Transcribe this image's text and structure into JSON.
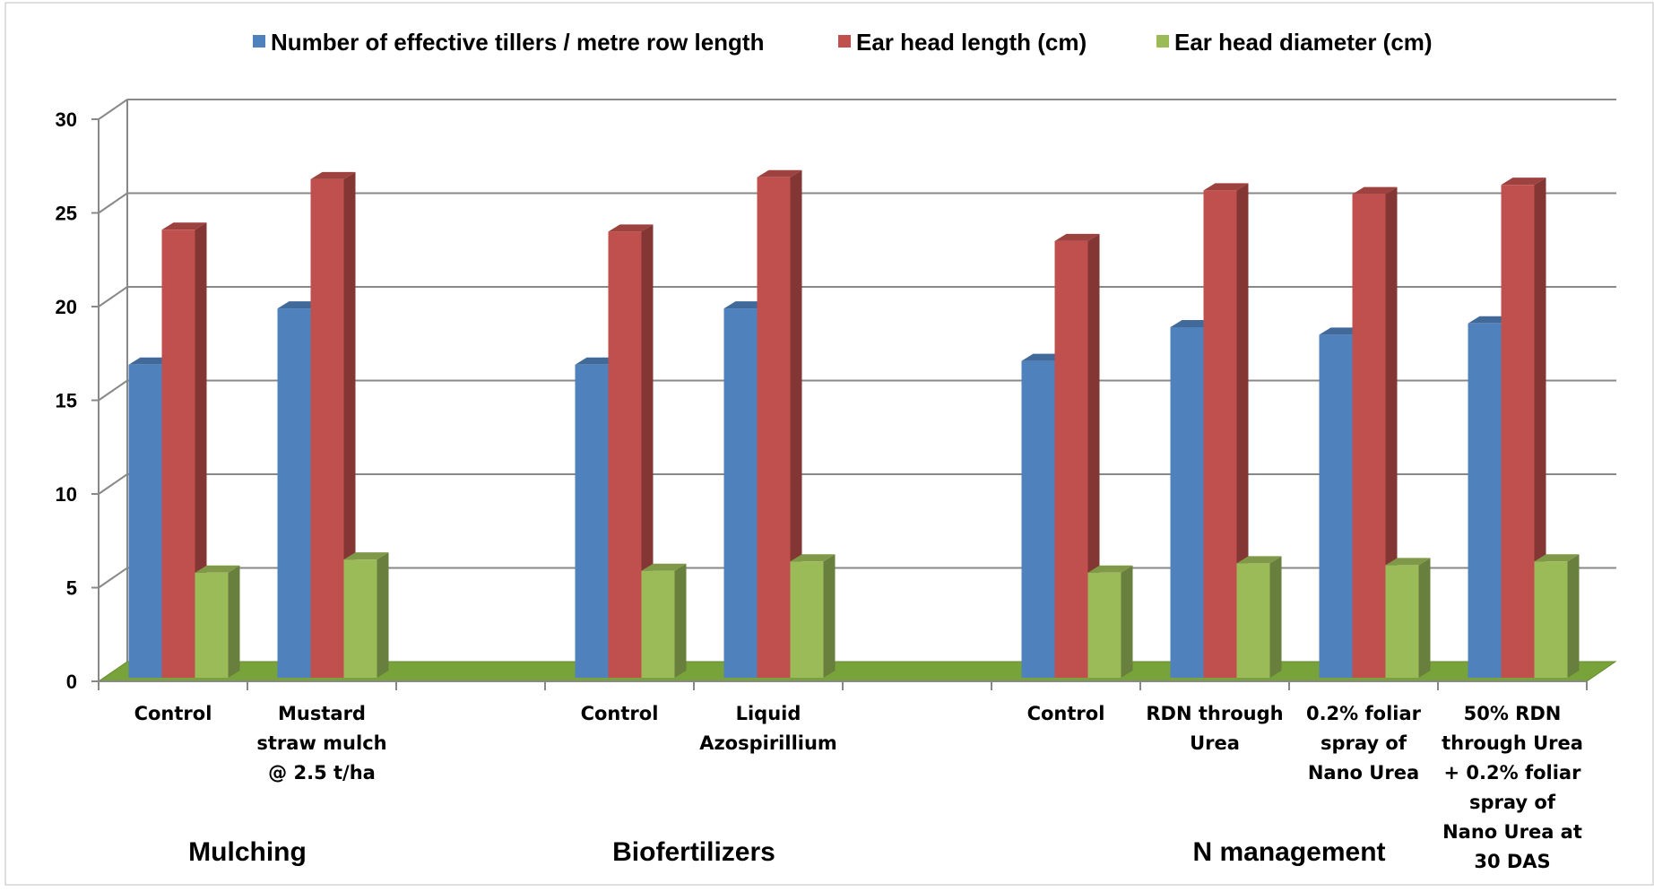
{
  "chart_data": {
    "type": "bar",
    "title": "",
    "xlabel": "",
    "ylabel": "",
    "ylim": [
      0,
      30
    ],
    "yticks": [
      0,
      5,
      10,
      15,
      20,
      25,
      30
    ],
    "grid": true,
    "legend_position": "top",
    "colors": {
      "tillers": "#4F81BD",
      "length": "#C0504D",
      "diameter": "#9BBB59",
      "floor": "#77A33A"
    },
    "series": [
      {
        "name": "Number of effective tillers / metre row length",
        "color": "#4F81BD"
      },
      {
        "name": "Ear head length (cm)",
        "color": "#C0504D"
      },
      {
        "name": "Ear head diameter (cm)",
        "color": "#9BBB59"
      }
    ],
    "groups": [
      {
        "label": "Mulching",
        "categories": [
          {
            "lines": [
              "Control"
            ],
            "values": [
              16.9,
              24.1,
              5.8
            ]
          },
          {
            "lines": [
              "Mustard",
              "straw mulch",
              "@ 2.5 t/ha"
            ],
            "values": [
              19.9,
              26.8,
              6.5
            ]
          }
        ]
      },
      {
        "label": "Biofertilizers",
        "categories": [
          {
            "lines": [
              "Control"
            ],
            "values": [
              16.9,
              24.0,
              5.9
            ]
          },
          {
            "lines": [
              "Liquid",
              "Azospirillium"
            ],
            "values": [
              19.9,
              26.9,
              6.4
            ]
          }
        ]
      },
      {
        "label": "N management",
        "categories": [
          {
            "lines": [
              "Control"
            ],
            "values": [
              17.1,
              23.5,
              5.8
            ]
          },
          {
            "lines": [
              "RDN through",
              "Urea"
            ],
            "values": [
              18.9,
              26.2,
              6.3
            ]
          },
          {
            "lines": [
              "0.2% foliar",
              "spray of",
              "Nano Urea"
            ],
            "values": [
              18.5,
              26.0,
              6.2
            ]
          },
          {
            "lines": [
              "50% RDN",
              "through Urea",
              "+ 0.2% foliar",
              "spray of",
              "Nano Urea at",
              "30 DAS"
            ],
            "values": [
              19.1,
              26.5,
              6.4
            ]
          }
        ]
      }
    ]
  }
}
